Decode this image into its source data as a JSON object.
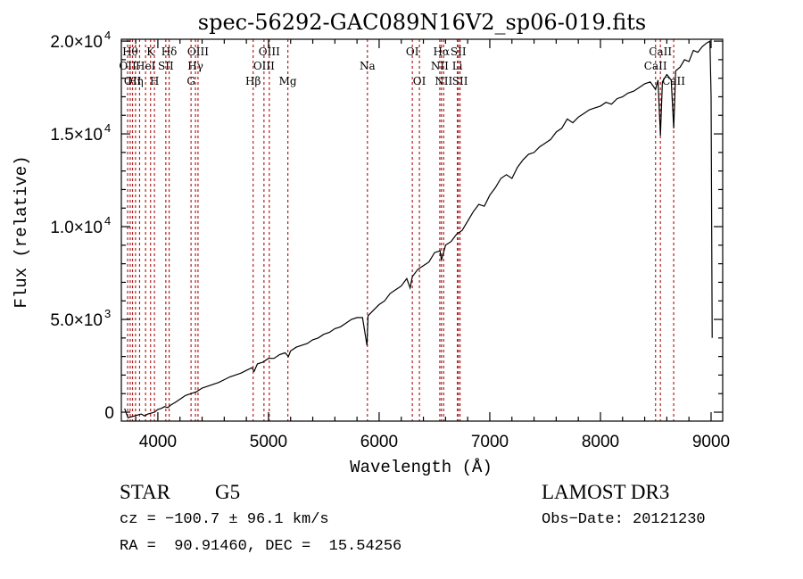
{
  "chart_data": {
    "type": "line",
    "title": "spec-56292-GAC089N16V2_sp06-019.fits",
    "xlabel": "Wavelength (Å)",
    "ylabel": "Flux (relative)",
    "xlim": [
      3670,
      9105
    ],
    "ylim": [
      -480,
      20100
    ],
    "grid": false,
    "x_ticks": [
      {
        "value": 4000,
        "label": "4000"
      },
      {
        "value": 5000,
        "label": "5000"
      },
      {
        "value": 6000,
        "label": "6000"
      },
      {
        "value": 7000,
        "label": "7000"
      },
      {
        "value": 8000,
        "label": "8000"
      },
      {
        "value": 9000,
        "label": "9000"
      }
    ],
    "x_minor_step": 200,
    "y_ticks": [
      {
        "value": 0,
        "label": "0",
        "exp": ""
      },
      {
        "value": 5000,
        "label": "5.0×10",
        "exp": "3"
      },
      {
        "value": 10000,
        "label": "1.0×10",
        "exp": "4"
      },
      {
        "value": 15000,
        "label": "1.5×10",
        "exp": "4"
      },
      {
        "value": 20000,
        "label": "2.0×10",
        "exp": "4"
      }
    ],
    "y_minor_step": 1000,
    "series": [
      {
        "name": "spectrum",
        "color": "#000000",
        "x": [
          3700,
          3730,
          3760,
          3790,
          3820,
          3850,
          3880,
          3910,
          3940,
          3970,
          4000,
          4030,
          4060,
          4090,
          4120,
          4150,
          4200,
          4250,
          4300,
          4350,
          4400,
          4450,
          4500,
          4550,
          4600,
          4650,
          4700,
          4750,
          4800,
          4850,
          4870,
          4900,
          4950,
          5000,
          5050,
          5100,
          5150,
          5180,
          5200,
          5250,
          5300,
          5350,
          5400,
          5450,
          5500,
          5550,
          5600,
          5650,
          5700,
          5750,
          5800,
          5850,
          5890,
          5900,
          5950,
          6000,
          6050,
          6100,
          6150,
          6200,
          6250,
          6280,
          6300,
          6350,
          6400,
          6450,
          6500,
          6550,
          6563,
          6600,
          6650,
          6700,
          6750,
          6800,
          6850,
          6900,
          6950,
          7000,
          7050,
          7100,
          7150,
          7200,
          7250,
          7300,
          7350,
          7400,
          7450,
          7500,
          7550,
          7600,
          7650,
          7700,
          7750,
          7800,
          7850,
          7900,
          7950,
          8000,
          8050,
          8100,
          8150,
          8200,
          8250,
          8300,
          8350,
          8400,
          8450,
          8498,
          8520,
          8542,
          8560,
          8600,
          8640,
          8662,
          8680,
          8720,
          8760,
          8800,
          8840,
          8880,
          8920,
          8960,
          8990,
          9000,
          9010
        ],
        "y": [
          200,
          -300,
          -250,
          -200,
          -150,
          -100,
          -200,
          -100,
          -50,
          0,
          150,
          200,
          300,
          250,
          400,
          500,
          700,
          900,
          1000,
          1100,
          1300,
          1400,
          1500,
          1600,
          1750,
          1900,
          2000,
          2100,
          2250,
          2400,
          2200,
          2600,
          2700,
          2900,
          2900,
          3100,
          3200,
          3000,
          3300,
          3500,
          3600,
          3700,
          3900,
          4000,
          4200,
          4300,
          4500,
          4600,
          4800,
          5000,
          5100,
          5100,
          3600,
          5200,
          5500,
          5800,
          6000,
          6400,
          6600,
          6800,
          7200,
          6700,
          7300,
          7700,
          7900,
          8100,
          8600,
          8700,
          8200,
          9000,
          9200,
          9600,
          9800,
          10300,
          10800,
          11200,
          11100,
          11700,
          12100,
          12600,
          12800,
          12600,
          13200,
          13600,
          13900,
          14000,
          14300,
          14500,
          14700,
          15100,
          15300,
          15800,
          15600,
          15900,
          16100,
          16300,
          16400,
          16500,
          16700,
          16600,
          16900,
          17000,
          17200,
          17300,
          17500,
          17700,
          17800,
          17400,
          17900,
          14900,
          17800,
          18200,
          17900,
          15300,
          18400,
          18600,
          19000,
          18900,
          19500,
          19400,
          19700,
          19900,
          20000,
          17000,
          4000
        ]
      }
    ],
    "lines": [
      {
        "wavelength": 3727,
        "label": "OII",
        "row": 2
      },
      {
        "wavelength": 3750,
        "label": "Hθ",
        "row": 1
      },
      {
        "wavelength": 3771,
        "label": "OII",
        "row": 3
      },
      {
        "wavelength": 3798,
        "label": "Hη",
        "row": 3
      },
      {
        "wavelength": 3835,
        "label": "",
        "row": 0
      },
      {
        "wavelength": 3889,
        "label": "HeI",
        "row": 2
      },
      {
        "wavelength": 3934,
        "label": "K",
        "row": 1
      },
      {
        "wavelength": 3969,
        "label": "H",
        "row": 3
      },
      {
        "wavelength": 4072,
        "label": "SII",
        "row": 2
      },
      {
        "wavelength": 4102,
        "label": "Hδ",
        "row": 1
      },
      {
        "wavelength": 4300,
        "label": "G",
        "row": 3
      },
      {
        "wavelength": 4340,
        "label": "Hγ",
        "row": 2
      },
      {
        "wavelength": 4363,
        "label": "OIII",
        "row": 1
      },
      {
        "wavelength": 4861,
        "label": "Hβ",
        "row": 3
      },
      {
        "wavelength": 4959,
        "label": "OIII",
        "row": 2
      },
      {
        "wavelength": 5007,
        "label": "OIII",
        "row": 1
      },
      {
        "wavelength": 5175,
        "label": "Mg",
        "row": 3
      },
      {
        "wavelength": 5894,
        "label": "Na",
        "row": 2
      },
      {
        "wavelength": 6300,
        "label": "OI",
        "row": 1
      },
      {
        "wavelength": 6364,
        "label": "OI",
        "row": 3
      },
      {
        "wavelength": 6548,
        "label": "NII",
        "row": 2
      },
      {
        "wavelength": 6563,
        "label": "Hα",
        "row": 1
      },
      {
        "wavelength": 6583,
        "label": "NII",
        "row": 3
      },
      {
        "wavelength": 6707,
        "label": "Li",
        "row": 2
      },
      {
        "wavelength": 6716,
        "label": "SII",
        "row": 1
      },
      {
        "wavelength": 6731,
        "label": "SII",
        "row": 3
      },
      {
        "wavelength": 8498,
        "label": "CaII",
        "row": 2
      },
      {
        "wavelength": 8542,
        "label": "CaII",
        "row": 1
      },
      {
        "wavelength": 8662,
        "label": "CaII",
        "row": 3
      }
    ],
    "line_color": "#b22222"
  },
  "info": {
    "object_class": "STAR",
    "subclass": "G5",
    "redshift": "cz = −100.7 ± 96.1 km/s",
    "coords": "RA =  90.91460, DEC =  15.54256",
    "survey": "LAMOST DR3",
    "obs_date": "Obs−Date: 20121230"
  }
}
